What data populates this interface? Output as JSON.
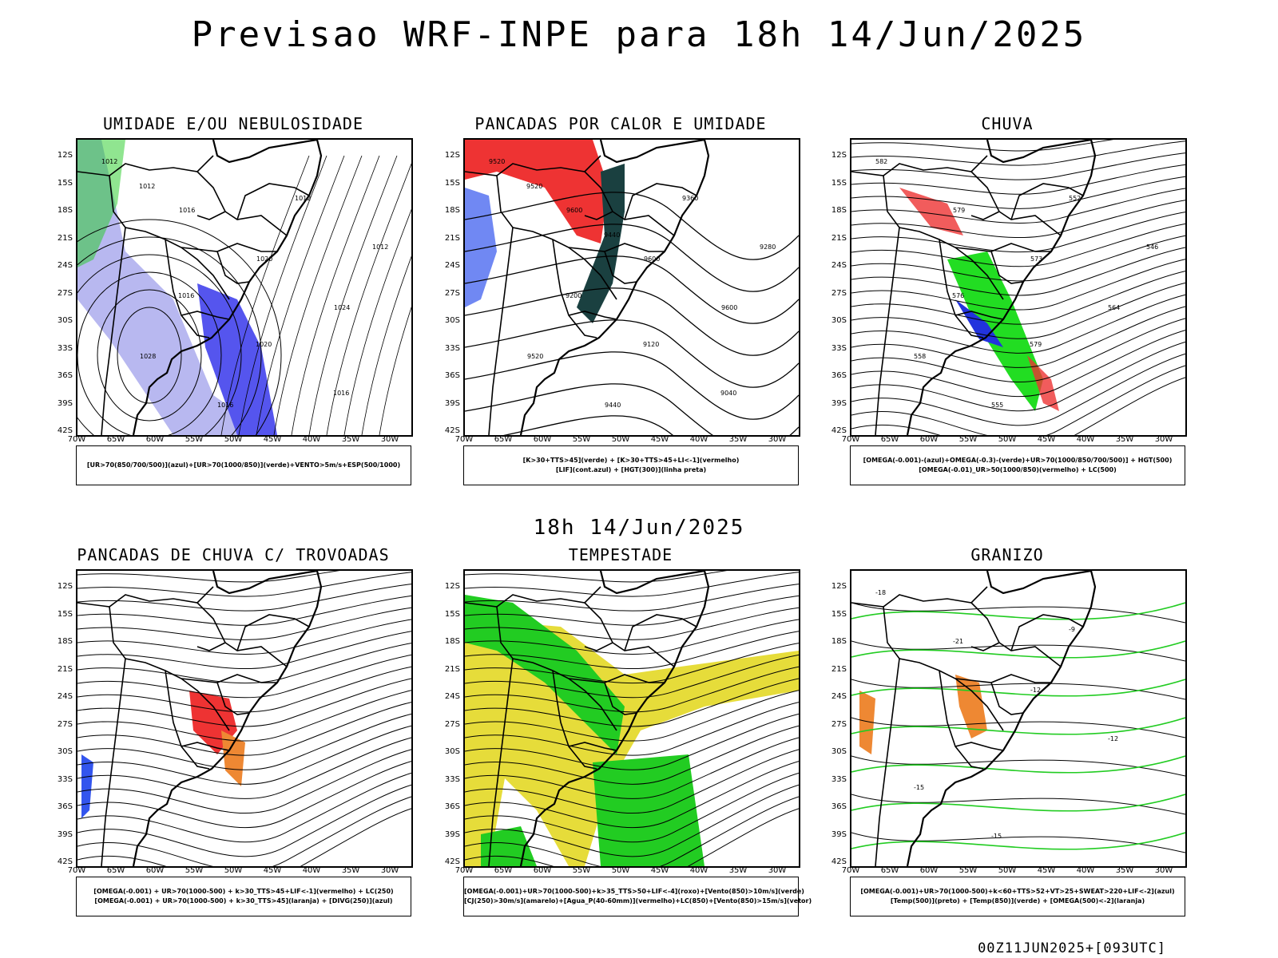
{
  "header": {
    "title": "Previsao WRF-INPE  para 18h 14/Jun/2025",
    "subtitle": "18h 14/Jun/2025",
    "footer": "00Z11JUN2025+[093UTC]"
  },
  "axes": {
    "lat_ticks": [
      "12S",
      "15S",
      "18S",
      "21S",
      "24S",
      "27S",
      "30S",
      "33S",
      "36S",
      "39S",
      "42S"
    ],
    "lon_ticks": [
      "70W",
      "65W",
      "60W",
      "55W",
      "50W",
      "45W",
      "40W",
      "35W",
      "30W"
    ]
  },
  "panels": [
    {
      "title": "UMIDADE E/OU NEBULOSIDADE",
      "legend": [
        "[UR>70(850/700/500)](azul)+[UR>70(1000/850)](verde)+VENTO>5m/s+ESP(500/1000)"
      ],
      "labels": [
        "1012",
        "1016",
        "1020",
        "1024",
        "1028",
        "1016",
        "1012",
        "1012",
        "1016",
        "1020",
        "1016",
        "1012"
      ]
    },
    {
      "title": "PANCADAS POR CALOR E UMIDADE",
      "legend": [
        "[K>30+TTS>45](verde) + [K>30+TTS>45+LI<-1](vermelho)",
        "[LIF](cont.azul) + [HGT(300)](linha preta)"
      ],
      "labels": [
        "9520",
        "9600",
        "9600",
        "9600",
        "9520",
        "9440",
        "9360",
        "9280",
        "9200",
        "9120",
        "9040",
        "9520",
        "9440"
      ]
    },
    {
      "title": "CHUVA",
      "legend": [
        "[OMEGA(-0.001)-(azul)+OMEGA(-0.3)-(verde)+UR>70(1000/850/700/500)] + HGT(500)",
        "[OMEGA(-0.01)_UR>50(1000/850)(vermelho) + LC(500)"
      ],
      "labels": [
        "582",
        "579",
        "573",
        "564",
        "558",
        "555",
        "552",
        "546",
        "576",
        "579"
      ]
    },
    {
      "title": "PANCADAS DE CHUVA C/ TROVOADAS",
      "legend": [
        "[OMEGA(-0.001) + UR>70(1000-500) + k>30_TTS>45+LIF<-1](vermelho) + LC(250)",
        "[OMEGA(-0.001) + UR>70(1000-500) + k>30_TTS>45](laranja) + [DIVG(250)](azul)"
      ],
      "labels": []
    },
    {
      "title": "TEMPESTADE",
      "legend": [
        "[OMEGA(-0.001)+UR>70(1000-500)+k>35_TTS>50+LIF<-4](roxo)+[Vento(850)>10m/s](verde)",
        "[CJ(250)>30m/s](amarelo)+[Agua_P(40-60mm)](vermelho)+LC(850)+[Vento(850)>15m/s](vetor)"
      ],
      "labels": []
    },
    {
      "title": "GRANIZO",
      "legend": [
        "[OMEGA(-0.001)+UR>70(1000-500)+k<60+TTS>52+VT>25+SWEAT>220+LIF<-2](azul)",
        "[Temp(500)](preto) + [Temp(850)](verde) + [OMEGA(500)<-2](laranja)"
      ],
      "labels": [
        "-18",
        "-21",
        "-12",
        "-12",
        "-15",
        "-15",
        "-9"
      ]
    }
  ]
}
